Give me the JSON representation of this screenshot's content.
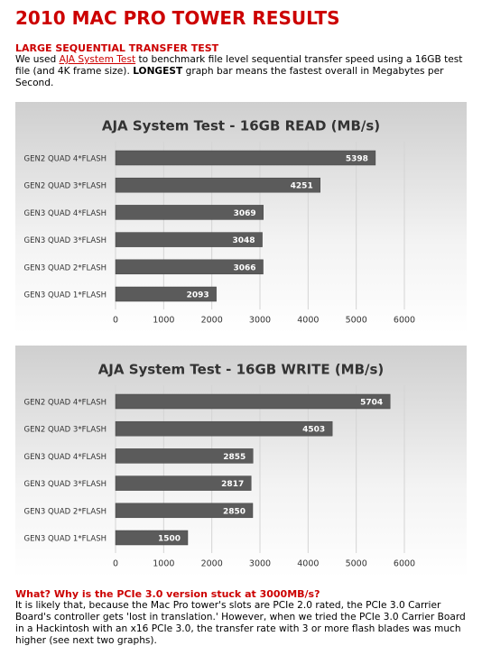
{
  "header": {
    "title": "2010 MAC PRO TOWER RESULTS",
    "subtitle": "LARGE SEQUENTIAL TRANSFER TEST"
  },
  "intro": {
    "before": "We used",
    "link": "AJA System Test",
    "middle": "to benchmark file level sequential transfer speed using a 16GB test file (and 4K frame size).",
    "bold": "LONGEST",
    "after": "graph bar means the fastest overall in Megabytes per Second."
  },
  "chart_data": [
    {
      "type": "bar",
      "orientation": "horizontal",
      "title": "AJA System Test - 16GB READ (MB/s)",
      "categories": [
        "GEN2 QUAD 4*FLASH",
        "GEN2 QUAD 3*FLASH",
        "GEN3 QUAD 4*FLASH",
        "GEN3 QUAD 3*FLASH",
        "GEN3 QUAD 2*FLASH",
        "GEN3 QUAD 1*FLASH"
      ],
      "values": [
        5398,
        4251,
        3069,
        3048,
        3066,
        2093
      ],
      "color": "#5b5b5b",
      "xlim": [
        0,
        6000
      ],
      "xticks": [
        0,
        1000,
        2000,
        3000,
        4000,
        5000,
        6000
      ],
      "grid": true
    },
    {
      "type": "bar",
      "orientation": "horizontal",
      "title": "AJA System Test - 16GB WRITE (MB/s)",
      "categories": [
        "GEN2 QUAD 4*FLASH",
        "GEN2 QUAD 3*FLASH",
        "GEN3 QUAD 4*FLASH",
        "GEN3 QUAD 3*FLASH",
        "GEN3 QUAD 2*FLASH",
        "GEN3 QUAD 1*FLASH"
      ],
      "values": [
        5704,
        4503,
        2855,
        2817,
        2850,
        1500
      ],
      "color": "#5b5b5b",
      "xlim": [
        0,
        6000
      ],
      "xticks": [
        0,
        1000,
        2000,
        3000,
        4000,
        5000,
        6000
      ],
      "grid": true
    }
  ],
  "footer": {
    "heading": "What? Why is the PCIe 3.0 version stuck at 3000MB/s?",
    "text": "It is likely that, because the Mac Pro tower's slots are PCIe 2.0 rated, the PCIe 3.0 Carrier Board's controller gets 'lost in translation.' However, when we tried the PCIe 3.0 Carrier Board in a Hackintosh with an x16 PCIe 3.0, the transfer rate with 3 or more flash blades was much higher (see next two graphs)."
  }
}
